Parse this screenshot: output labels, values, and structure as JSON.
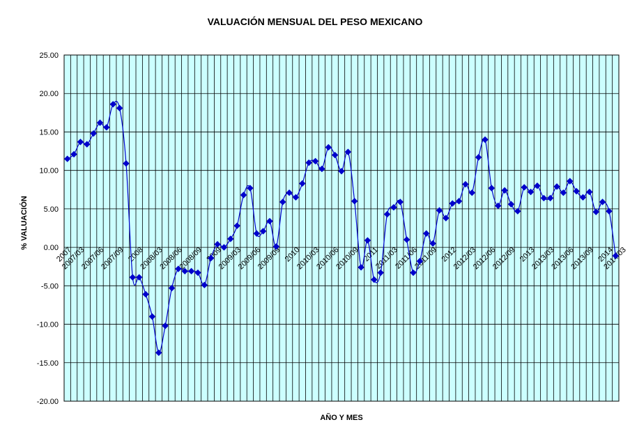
{
  "chart_data": {
    "type": "line",
    "title": "VALUACIÓN MENSUAL DEL PESO MEXICANO",
    "xlabel": "AÑO Y MES",
    "ylabel": "% VALUACIÓN",
    "ylim": [
      -20,
      25
    ],
    "y_ticks": [
      "25.00",
      "20.00",
      "15.00",
      "10.00",
      "5.00",
      "0.00",
      "-5.00",
      "-10.00",
      "-15.00",
      "-20.00"
    ],
    "grid": true,
    "legend": "none",
    "colors": {
      "plot_background": "#ccffff",
      "series": "#0000cc",
      "grid": "#000000"
    },
    "x_labels": [
      {
        "index": 0,
        "label": "2007"
      },
      {
        "index": 2,
        "label": "2007/03"
      },
      {
        "index": 5,
        "label": "2007/06"
      },
      {
        "index": 8,
        "label": "2007/09"
      },
      {
        "index": 11,
        "label": "2008"
      },
      {
        "index": 14,
        "label": "2008/03"
      },
      {
        "index": 17,
        "label": "2008/06"
      },
      {
        "index": 20,
        "label": "2008/09"
      },
      {
        "index": 23,
        "label": "2009"
      },
      {
        "index": 26,
        "label": "2009/03"
      },
      {
        "index": 29,
        "label": "2009/06"
      },
      {
        "index": 32,
        "label": "2009/09"
      },
      {
        "index": 35,
        "label": "2010"
      },
      {
        "index": 38,
        "label": "2010/03"
      },
      {
        "index": 41,
        "label": "2010/06"
      },
      {
        "index": 44,
        "label": "2010/09"
      },
      {
        "index": 47,
        "label": "2011"
      },
      {
        "index": 50,
        "label": "2011/03"
      },
      {
        "index": 53,
        "label": "2011/06"
      },
      {
        "index": 56,
        "label": "2011/09"
      },
      {
        "index": 59,
        "label": "2012"
      },
      {
        "index": 62,
        "label": "2012/03"
      },
      {
        "index": 65,
        "label": "2012/06"
      },
      {
        "index": 68,
        "label": "2012/09"
      },
      {
        "index": 71,
        "label": "2013"
      },
      {
        "index": 74,
        "label": "2013/03"
      },
      {
        "index": 77,
        "label": "2013/06"
      },
      {
        "index": 80,
        "label": "2013/09"
      },
      {
        "index": 83,
        "label": "2014"
      },
      {
        "index": 85,
        "label": "2014/03"
      }
    ],
    "series": [
      {
        "values": [
          11.5,
          12.1,
          13.7,
          13.4,
          14.8,
          16.2,
          15.6,
          18.6,
          18.1,
          10.9,
          -3.9,
          -3.9,
          -6.1,
          -9.0,
          -13.7,
          -10.2,
          -5.3,
          -2.8,
          -3.1,
          -3.1,
          -3.3,
          -4.9,
          -1.4,
          0.4,
          0.0,
          1.1,
          2.8,
          6.8,
          7.7,
          1.8,
          2.1,
          3.4,
          0.1,
          5.9,
          7.1,
          6.5,
          8.3,
          11.0,
          11.2,
          10.2,
          13.0,
          12.0,
          9.9,
          12.4,
          6.0,
          -2.6,
          0.9,
          -4.2,
          -3.3,
          4.3,
          5.2,
          5.9,
          1.0,
          -3.3,
          -1.8,
          1.8,
          0.5,
          4.8,
          3.8,
          5.7,
          6.0,
          8.2,
          7.1,
          11.7,
          14.0,
          7.7,
          5.4,
          7.4,
          5.6,
          4.7,
          7.8,
          7.2,
          8.0,
          6.4,
          6.4,
          7.9,
          7.1,
          8.6,
          7.3,
          6.5,
          7.2,
          4.6,
          5.9,
          4.7,
          -1.1
        ]
      }
    ]
  }
}
